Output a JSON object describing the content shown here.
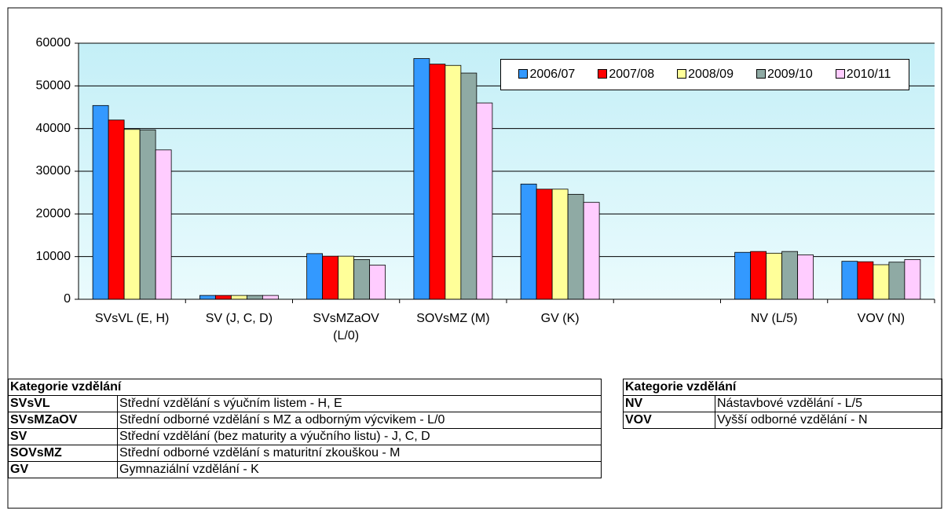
{
  "chart_data": {
    "type": "bar",
    "categories": [
      "SVsVL (E, H)",
      "SV (J, C, D)",
      "SVsMZaOV (L/0)",
      "SOVsMZ (M)",
      "GV (K)",
      null,
      "NV (L/5)",
      "VOV (N)"
    ],
    "series": [
      {
        "name": "2006/07",
        "color": "#3399ff",
        "values": [
          45400,
          900,
          10700,
          56400,
          27000,
          null,
          11000,
          8900
        ]
      },
      {
        "name": "2007/08",
        "color": "#ff0000",
        "values": [
          42000,
          900,
          10100,
          55100,
          25800,
          null,
          11200,
          8800
        ]
      },
      {
        "name": "2008/09",
        "color": "#ffff99",
        "values": [
          39800,
          900,
          10100,
          54800,
          25800,
          null,
          10800,
          8100
        ]
      },
      {
        "name": "2009/10",
        "color": "#8faaa4",
        "values": [
          39700,
          900,
          9300,
          53000,
          24600,
          null,
          11200,
          8700
        ]
      },
      {
        "name": "2010/11",
        "color": "#ffccff",
        "values": [
          35000,
          900,
          8000,
          46000,
          22700,
          null,
          10400,
          9300
        ]
      }
    ],
    "ylim": [
      0,
      60000
    ],
    "yticks": [
      0,
      10000,
      20000,
      30000,
      40000,
      50000,
      60000
    ],
    "grid": true,
    "legend": "top-right"
  },
  "tables": [
    {
      "header": "Kategorie vzdělání",
      "rows": [
        [
          "SVsVL",
          "Střední vzdělání s výučním listem - H, E"
        ],
        [
          "SVsMZaOV",
          "Střední odborné vzdělání s MZ a odborným výcvikem - L/0"
        ],
        [
          "SV",
          "Střední vzdělání (bez maturity a výučního listu) - J, C, D"
        ],
        [
          "SOVsMZ",
          "Střední odborné vzdělání s maturitní zkouškou - M"
        ],
        [
          "GV",
          "Gymnaziální vzdělání - K"
        ]
      ]
    },
    {
      "header": "Kategorie vzdělání",
      "rows": [
        [
          "NV",
          "Nástavbové vzdělání - L/5"
        ],
        [
          "VOV",
          "Vyšší odborné vzdělání - N"
        ]
      ]
    }
  ]
}
